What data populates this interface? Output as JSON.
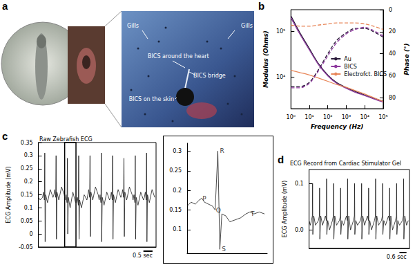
{
  "panels": [
    "a",
    "b",
    "c",
    "d"
  ],
  "photo": {
    "labels": [
      "Gills",
      "Gills",
      "BICS around the heart",
      "BICS bridge",
      "BICS on the skin"
    ]
  },
  "chart_data": [
    {
      "type": "line",
      "x_label": "Frequency (Hz)",
      "y_label": "Modulus (Ohms)",
      "y2_label": "Phase (°)",
      "log": true,
      "grid": false,
      "legend": "right",
      "x": [
        1,
        3,
        10,
        30,
        100,
        300,
        1000,
        3000,
        10000,
        30000,
        100000
      ],
      "xlim": [
        1,
        100000
      ],
      "xticks": [
        {
          "value": 1,
          "label": "10⁰"
        },
        {
          "value": 10,
          "label": "10¹"
        },
        {
          "value": 100,
          "label": "10²"
        },
        {
          "value": 1000,
          "label": "10³"
        },
        {
          "value": 10000,
          "label": "10⁴"
        },
        {
          "value": 100000,
          "label": "10⁵"
        }
      ],
      "ylim": [
        2000,
        300000
      ],
      "yticks": [
        {
          "value": 10000,
          "label": "10⁴"
        },
        {
          "value": 100000,
          "label": "10⁵"
        }
      ],
      "y2lim": [
        90,
        0
      ],
      "y2ticks": [
        0,
        20,
        40,
        60,
        80
      ],
      "series": [
        {
          "name": "Au",
          "color": "#2b1b3a",
          "line_style": "solid",
          "values": [
            220000,
            95000,
            42000,
            20000,
            11000,
            7500,
            5800,
            4800,
            4000,
            3400,
            2900
          ]
        },
        {
          "name": "BICS",
          "color": "#8e3a9e",
          "line_style": "solid",
          "values": [
            200000,
            88000,
            39000,
            19000,
            10500,
            7200,
            5600,
            4600,
            3900,
            3300,
            2800
          ]
        },
        {
          "name": "Electrofct. BICS",
          "color": "#e8875a",
          "line_style": "solid",
          "values": [
            14000,
            12500,
            11000,
            9500,
            8000,
            6800,
            5900,
            5000,
            4200,
            3500,
            2900
          ]
        },
        {
          "name": "Au",
          "color": "#2b1b3a",
          "line_style": "dashed",
          "axis": "y2",
          "values": [
            70,
            70,
            66,
            55,
            40,
            28,
            21,
            17,
            17,
            20,
            25
          ]
        },
        {
          "name": "BICS",
          "color": "#8e3a9e",
          "line_style": "dashed",
          "axis": "y2",
          "values": [
            71,
            71,
            67,
            56,
            42,
            30,
            22,
            18,
            16,
            19,
            24
          ]
        },
        {
          "name": "Electrofct. BICS",
          "color": "#e8875a",
          "line_style": "dashed",
          "axis": "y2",
          "values": [
            14,
            15,
            15,
            14,
            13,
            12,
            12,
            12,
            13,
            15,
            18
          ]
        }
      ]
    },
    {
      "type": "line",
      "title": "Raw Zebrafish ECG",
      "y_label": "ECG Amplitude (mV)",
      "color": "#1a1a1a",
      "grid": false,
      "tick_labels": "y",
      "xlim": [
        0,
        6.45
      ],
      "ylim": [
        -0.05,
        0.35
      ],
      "yticks": [
        -0.05,
        0,
        0.05,
        0.1,
        0.15,
        0.2,
        0.25,
        0.3,
        0.35
      ],
      "scale_bar": {
        "length": 0.5,
        "label": "0.5 sec"
      },
      "highlight": {
        "x": [
          1.44,
          2.06
        ]
      },
      "x": [
        0,
        0.1,
        0.23,
        0.28,
        0.33,
        0.35,
        0.37,
        0.4,
        0.5,
        0.65,
        0.8,
        0.85,
        0.9,
        0.95,
        0.97,
        0.99,
        1.02,
        1.12,
        1.27,
        1.42,
        1.47,
        1.52,
        1.57,
        1.59,
        1.61,
        1.64,
        1.74,
        1.89,
        2.04,
        2.09,
        2.14,
        2.19,
        2.21,
        2.23,
        2.26,
        2.36,
        2.51,
        2.66,
        2.71,
        2.76,
        2.81,
        2.83,
        2.85,
        2.88,
        2.98,
        3.13,
        3.28,
        3.33,
        3.38,
        3.43,
        3.45,
        3.47,
        3.5,
        3.6,
        3.75,
        3.9,
        3.95,
        4.0,
        4.05,
        4.07,
        4.09,
        4.12,
        4.22,
        4.37,
        4.52,
        4.57,
        4.62,
        4.67,
        4.69,
        4.71,
        4.74,
        4.84,
        4.99,
        5.14,
        5.19,
        5.24,
        5.29,
        5.31,
        5.33,
        5.36,
        5.46,
        5.61,
        5.76,
        5.81,
        5.86,
        5.91,
        5.93,
        5.95,
        5.98,
        6.08,
        6.23,
        6.38
      ],
      "values": [
        0.14,
        0.13,
        0.14,
        0.16,
        0.13,
        0.31,
        -0.03,
        0.15,
        0.12,
        0.17,
        0.14,
        0.15,
        0.17,
        0.14,
        0.3,
        -0.02,
        0.16,
        0.13,
        0.18,
        0.15,
        0.13,
        0.15,
        0.12,
        0.29,
        0.0,
        0.14,
        0.1,
        0.16,
        0.12,
        0.12,
        0.14,
        0.11,
        0.3,
        -0.02,
        0.13,
        0.1,
        0.15,
        0.13,
        0.15,
        0.17,
        0.14,
        0.3,
        -0.01,
        0.16,
        0.13,
        0.18,
        0.15,
        0.13,
        0.15,
        0.12,
        0.31,
        -0.03,
        0.14,
        0.11,
        0.16,
        0.13,
        0.14,
        0.16,
        0.13,
        0.3,
        -0.02,
        0.15,
        0.12,
        0.17,
        0.14,
        0.15,
        0.17,
        0.14,
        0.29,
        -0.01,
        0.16,
        0.13,
        0.18,
        0.15,
        0.13,
        0.15,
        0.12,
        0.3,
        -0.02,
        0.14,
        0.11,
        0.16,
        0.13,
        0.14,
        0.16,
        0.13,
        0.31,
        -0.03,
        0.15,
        0.12,
        0.17,
        0.14
      ]
    },
    {
      "type": "line",
      "color": "#1a1a1a",
      "grid": false,
      "tick_labels": "y",
      "xlim": [
        0,
        0.6
      ],
      "ylim": [
        0.04,
        0.32
      ],
      "yticks": [
        0.1,
        0.15,
        0.2,
        0.25,
        0.3
      ],
      "x": [
        0,
        0.03,
        0.06,
        0.09,
        0.11,
        0.13,
        0.16,
        0.19,
        0.21,
        0.23,
        0.245,
        0.26,
        0.29,
        0.32,
        0.36,
        0.4,
        0.44,
        0.47,
        0.5,
        0.54,
        0.58
      ],
      "values": [
        0.16,
        0.17,
        0.165,
        0.175,
        0.18,
        0.17,
        0.165,
        0.16,
        0.15,
        0.3,
        0.05,
        0.14,
        0.135,
        0.12,
        0.125,
        0.13,
        0.14,
        0.145,
        0.14,
        0.145,
        0.14
      ],
      "annotations": [
        {
          "text": "P",
          "x": 0.1,
          "y": 0.18
        },
        {
          "text": "Q",
          "x": 0.2,
          "y": 0.15
        },
        {
          "text": "R",
          "x": 0.23,
          "y": 0.3
        },
        {
          "text": "S",
          "x": 0.245,
          "y": 0.05
        },
        {
          "text": "T",
          "x": 0.46,
          "y": 0.14
        }
      ]
    },
    {
      "type": "line",
      "title": "ECG Record from Cardiac Stimulator Gel",
      "y_label": "ECG Amplitude (mV)",
      "color": "#1a1a1a",
      "grid": false,
      "tick_labels": "y",
      "xlim": [
        0,
        8.6
      ],
      "ylim": [
        -0.04,
        0.13
      ],
      "yticks": [
        {
          "value": 0,
          "label": "0.0"
        },
        0.1
      ],
      "scale_bar": {
        "length": 0.6,
        "label": "0.6 sec"
      },
      "x": [
        0,
        0.1,
        0.2,
        0.28,
        0.3,
        0.32,
        0.4,
        0.55,
        0.8,
        0.88,
        0.9,
        0.92,
        1.0,
        1.15,
        1.4,
        1.48,
        1.5,
        1.52,
        1.6,
        1.75,
        2.0,
        2.08,
        2.1,
        2.12,
        2.2,
        2.35,
        2.6,
        2.68,
        2.7,
        2.72,
        2.8,
        2.95,
        3.2,
        3.28,
        3.3,
        3.32,
        3.4,
        3.55,
        3.8,
        3.88,
        3.9,
        3.92,
        4.0,
        4.15,
        4.4,
        4.48,
        4.5,
        4.52,
        4.6,
        4.75,
        5.0,
        5.08,
        5.1,
        5.12,
        5.2,
        5.35,
        5.6,
        5.68,
        5.7,
        5.72,
        5.8,
        5.95,
        6.2,
        6.28,
        6.3,
        6.32,
        6.4,
        6.55,
        6.8,
        6.88,
        6.9,
        6.92,
        7.0,
        7.15,
        7.4,
        7.48,
        7.5,
        7.52,
        7.6,
        7.75,
        8.0,
        8.08,
        8.1,
        8.12,
        8.2,
        8.35,
        8.5
      ],
      "values": [
        0.02,
        0.01,
        0.02,
        0.03,
        0.1,
        -0.01,
        0.03,
        0.01,
        0.02,
        0.03,
        0.09,
        -0.02,
        0.03,
        0.01,
        0.03,
        0.02,
        0.11,
        -0.01,
        0.02,
        0.0,
        0.02,
        0.03,
        0.1,
        -0.02,
        0.03,
        0.01,
        0.02,
        0.03,
        0.09,
        -0.01,
        0.02,
        0.01,
        0.03,
        0.02,
        0.11,
        -0.02,
        0.03,
        0.0,
        0.02,
        0.03,
        0.1,
        -0.01,
        0.02,
        0.01,
        0.02,
        0.03,
        0.1,
        -0.02,
        0.03,
        0.01,
        0.03,
        0.02,
        0.09,
        -0.01,
        0.02,
        0.0,
        0.02,
        0.03,
        0.11,
        -0.02,
        0.03,
        0.01,
        0.02,
        0.03,
        0.1,
        -0.01,
        0.02,
        0.01,
        0.03,
        0.02,
        0.09,
        -0.02,
        0.03,
        0.0,
        0.02,
        0.03,
        0.1,
        -0.01,
        0.02,
        0.01,
        0.02,
        0.03,
        0.11,
        -0.02,
        0.03,
        0.01,
        0.02
      ]
    }
  ]
}
